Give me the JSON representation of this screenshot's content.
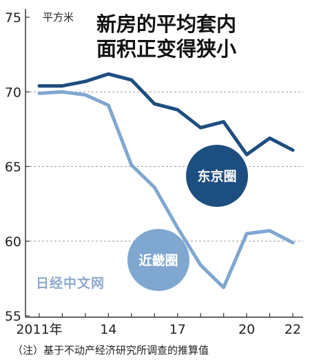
{
  "chart_data": {
    "type": "line",
    "title": [
      "新房的平均套内",
      "面积正变得狭小"
    ],
    "unit": "平方米",
    "x": [
      2011,
      2012,
      2013,
      2014,
      2015,
      2016,
      2017,
      2018,
      2019,
      2020,
      2021,
      2022
    ],
    "x_tick_labels": [
      {
        "x": 2011,
        "label": "2011年"
      },
      {
        "x": 2014,
        "label": "14"
      },
      {
        "x": 2017,
        "label": "17"
      },
      {
        "x": 2020,
        "label": "20"
      },
      {
        "x": 2022,
        "label": "22"
      }
    ],
    "ylim": [
      55,
      75
    ],
    "y_ticks": [
      55,
      60,
      65,
      70,
      75
    ],
    "grid": "horizontal dashed",
    "series": [
      {
        "name": "东京圈",
        "color": "#1d4e80",
        "values": [
          70.4,
          70.4,
          70.7,
          71.2,
          70.8,
          69.2,
          68.8,
          67.6,
          68.0,
          65.8,
          66.9,
          66.1
        ]
      },
      {
        "name": "近畿圈",
        "color": "#7fa7d0",
        "values": [
          69.9,
          70.0,
          69.8,
          69.1,
          65.1,
          63.6,
          60.9,
          58.4,
          56.9,
          60.5,
          60.7,
          59.9
        ]
      }
    ],
    "watermark": "日经中文网",
    "note": "（注）基于不动产经济研究所调查的推算值"
  }
}
